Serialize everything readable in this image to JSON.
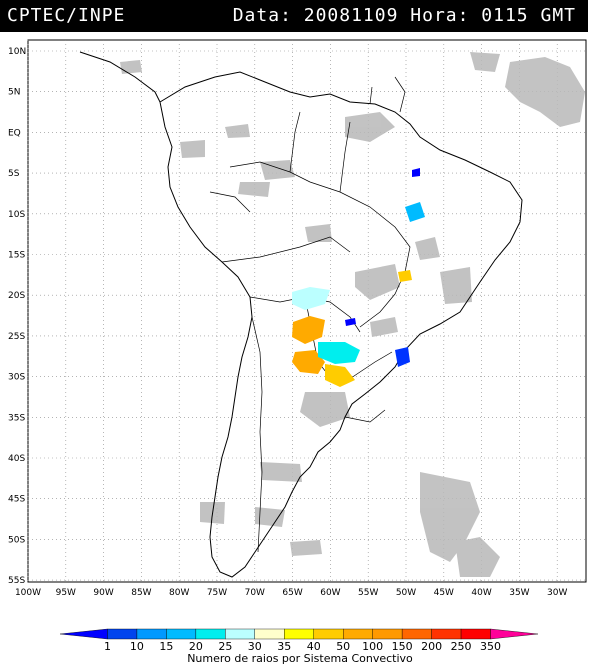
{
  "header": {
    "source": "CPTEC/INPE",
    "datetime": "Data: 20081109 Hora: 0115 GMT"
  },
  "latitude_labels": [
    "10N",
    "5N",
    "EQ",
    "5S",
    "10S",
    "15S",
    "20S",
    "25S",
    "30S",
    "35S",
    "40S",
    "45S",
    "50S",
    "55S"
  ],
  "longitude_labels": [
    "100W",
    "95W",
    "90W",
    "85W",
    "80W",
    "75W",
    "70W",
    "65W",
    "60W",
    "55W",
    "50W",
    "45W",
    "40W",
    "35W",
    "30W"
  ],
  "legend": {
    "title": "Numero de raios por Sistema Convectivo",
    "values": [
      "1",
      "10",
      "15",
      "20",
      "25",
      "30",
      "35",
      "40",
      "50",
      "100",
      "150",
      "200",
      "250",
      "350"
    ],
    "colors": [
      "#0000ff",
      "#0044ee",
      "#0099ff",
      "#00bbff",
      "#00eeee",
      "#bbffff",
      "#ffffcc",
      "#ffff00",
      "#ffcc00",
      "#ffaa00",
      "#ff9900",
      "#ff6600",
      "#ff3300",
      "#ff0000",
      "#ff0099"
    ]
  }
}
